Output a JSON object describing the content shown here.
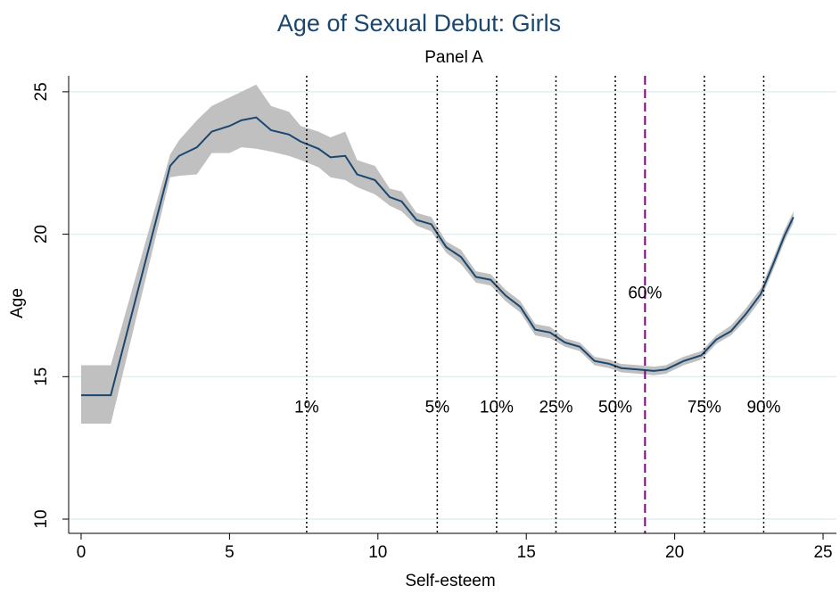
{
  "chart_data": {
    "type": "line",
    "title": "Age of Sexual Debut: Girls",
    "subtitle": "Panel A",
    "x_label": "Self-esteem",
    "y_label": "Age",
    "x": [
      0,
      1,
      3,
      3.3,
      3.9,
      4.4,
      5,
      5.4,
      5.9,
      6.4,
      7,
      7.4,
      8,
      8.4,
      8.9,
      9.3,
      9.9,
      10.4,
      10.8,
      11.3,
      11.8,
      12.3,
      12.8,
      13.3,
      13.8,
      14.3,
      14.8,
      15.3,
      15.8,
      16.3,
      16.8,
      17.3,
      17.8,
      18.2,
      18.8,
      19.3,
      19.7,
      20.3,
      20.9,
      21.4,
      21.9,
      22.4,
      22.9,
      23.3,
      23.7,
      24
    ],
    "series": [
      {
        "color": "#1a476f",
        "values": [
          14.35,
          14.35,
          22.4,
          22.75,
          23.05,
          23.6,
          23.8,
          24.0,
          24.1,
          23.65,
          23.5,
          23.25,
          23.0,
          22.7,
          22.75,
          22.1,
          21.9,
          21.3,
          21.15,
          20.5,
          20.35,
          19.55,
          19.2,
          18.5,
          18.4,
          17.85,
          17.45,
          16.65,
          16.55,
          16.2,
          16.05,
          15.55,
          15.45,
          15.3,
          15.25,
          15.2,
          15.25,
          15.55,
          15.75,
          16.3,
          16.6,
          17.2,
          17.9,
          18.9,
          19.95,
          20.6
        ],
        "ci_upper": [
          15.4,
          15.4,
          22.8,
          23.3,
          24.0,
          24.5,
          24.8,
          25.0,
          25.25,
          24.5,
          24.3,
          23.8,
          23.6,
          23.4,
          23.6,
          22.6,
          22.4,
          21.6,
          21.5,
          20.75,
          20.6,
          19.75,
          19.45,
          18.7,
          18.6,
          18.05,
          17.65,
          16.85,
          16.75,
          16.35,
          16.2,
          15.7,
          15.6,
          15.45,
          15.4,
          15.35,
          15.4,
          15.7,
          15.9,
          16.45,
          16.8,
          17.4,
          18.1,
          19.1,
          20.15,
          20.8
        ],
        "ci_lower": [
          13.35,
          13.35,
          22.0,
          22.05,
          22.1,
          22.85,
          22.85,
          23.05,
          23.0,
          22.9,
          22.75,
          22.6,
          22.35,
          22.0,
          21.9,
          21.65,
          21.4,
          21.0,
          20.8,
          20.3,
          20.1,
          19.35,
          18.95,
          18.3,
          18.2,
          17.65,
          17.25,
          16.45,
          16.35,
          16.05,
          15.9,
          15.4,
          15.3,
          15.15,
          15.1,
          15.05,
          15.1,
          15.4,
          15.6,
          16.15,
          16.45,
          17.0,
          17.7,
          18.7,
          19.75,
          20.4
        ],
        "ci_color": "#c0c0c0"
      }
    ],
    "vlines": [
      {
        "x": 7.6,
        "label": "1%",
        "label_y": 13.9,
        "style": "dotted",
        "color": "#000000"
      },
      {
        "x": 12.0,
        "label": "5%",
        "label_y": 13.9,
        "style": "dotted",
        "color": "#000000"
      },
      {
        "x": 14.0,
        "label": "10%",
        "label_y": 13.9,
        "style": "dotted",
        "color": "#000000"
      },
      {
        "x": 16.0,
        "label": "25%",
        "label_y": 13.9,
        "style": "dotted",
        "color": "#000000"
      },
      {
        "x": 18.0,
        "label": "50%",
        "label_y": 13.9,
        "style": "dotted",
        "color": "#000000"
      },
      {
        "x": 19.0,
        "label": "60%",
        "label_y": 17.9,
        "style": "dashed",
        "color": "#800080"
      },
      {
        "x": 21.0,
        "label": "75%",
        "label_y": 13.9,
        "style": "dotted",
        "color": "#000000"
      },
      {
        "x": 23.0,
        "label": "90%",
        "label_y": 13.9,
        "style": "dotted",
        "color": "#000000"
      }
    ],
    "xlim": [
      -0.42,
      25.45
    ],
    "xticks": [
      0,
      5,
      10,
      15,
      20,
      25
    ],
    "ylim": [
      9.5,
      25.56
    ],
    "yticks": [
      10,
      15,
      20,
      25
    ],
    "grid": true
  }
}
